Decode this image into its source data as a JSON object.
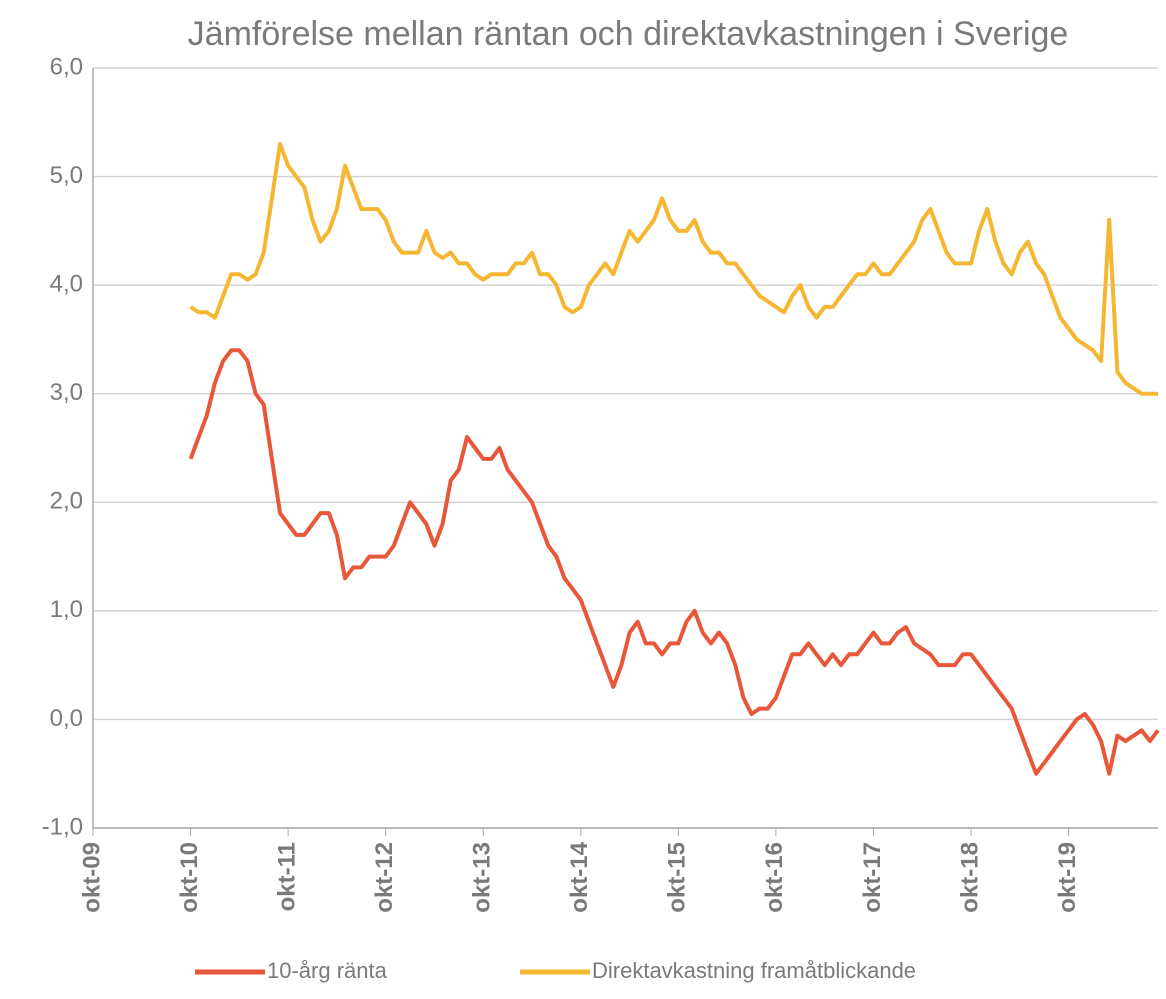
{
  "chart_data": {
    "type": "line",
    "title": "Jämförelse mellan räntan och direktavkastningen i Sverige",
    "categories": [
      "okt-09",
      null,
      null,
      null,
      null,
      null,
      null,
      null,
      null,
      null,
      null,
      null,
      "okt-10",
      null,
      null,
      null,
      null,
      null,
      null,
      null,
      null,
      null,
      null,
      null,
      "okt-11",
      null,
      null,
      null,
      null,
      null,
      null,
      null,
      null,
      null,
      null,
      null,
      "okt-12",
      null,
      null,
      null,
      null,
      null,
      null,
      null,
      null,
      null,
      null,
      null,
      "okt-13",
      null,
      null,
      null,
      null,
      null,
      null,
      null,
      null,
      null,
      null,
      null,
      "okt-14",
      null,
      null,
      null,
      null,
      null,
      null,
      null,
      null,
      null,
      null,
      null,
      "okt-15",
      null,
      null,
      null,
      null,
      null,
      null,
      null,
      null,
      null,
      null,
      null,
      "okt-16",
      null,
      null,
      null,
      null,
      null,
      null,
      null,
      null,
      null,
      null,
      null,
      "okt-17",
      null,
      null,
      null,
      null,
      null,
      null,
      null,
      null,
      null,
      null,
      null,
      "okt-18",
      null,
      null,
      null,
      null,
      null,
      null,
      null,
      null,
      null,
      null,
      null,
      "okt-19",
      null,
      null,
      null,
      null,
      null,
      null,
      null,
      null,
      null,
      null,
      null
    ],
    "series": [
      {
        "name": "10-årg ränta",
        "color": "#e8573a",
        "values": [
          null,
          null,
          null,
          null,
          null,
          null,
          null,
          null,
          null,
          null,
          null,
          null,
          2.4,
          2.6,
          2.8,
          3.1,
          3.3,
          3.4,
          3.4,
          3.3,
          3.0,
          2.9,
          2.4,
          1.9,
          1.8,
          1.7,
          1.7,
          1.8,
          1.9,
          1.9,
          1.7,
          1.3,
          1.4,
          1.4,
          1.5,
          1.5,
          1.5,
          1.6,
          1.8,
          2.0,
          1.9,
          1.8,
          1.6,
          1.8,
          2.2,
          2.3,
          2.6,
          2.5,
          2.4,
          2.4,
          2.5,
          2.3,
          2.2,
          2.1,
          2.0,
          1.8,
          1.6,
          1.5,
          1.3,
          1.2,
          1.1,
          0.9,
          0.7,
          0.5,
          0.3,
          0.5,
          0.8,
          0.9,
          0.7,
          0.7,
          0.6,
          0.7,
          0.7,
          0.9,
          1.0,
          0.8,
          0.7,
          0.8,
          0.7,
          0.5,
          0.2,
          0.05,
          0.1,
          0.1,
          0.2,
          0.4,
          0.6,
          0.6,
          0.7,
          0.6,
          0.5,
          0.6,
          0.5,
          0.6,
          0.6,
          0.7,
          0.8,
          0.7,
          0.7,
          0.8,
          0.85,
          0.7,
          0.65,
          0.6,
          0.5,
          0.5,
          0.5,
          0.6,
          0.6,
          0.5,
          0.4,
          0.3,
          0.2,
          0.1,
          -0.1,
          -0.3,
          -0.5,
          -0.4,
          -0.3,
          -0.2,
          -0.1,
          0.0,
          0.05,
          -0.05,
          -0.2,
          -0.5,
          -0.15,
          -0.2,
          -0.15,
          -0.1,
          -0.2,
          -0.1
        ]
      },
      {
        "name": "Direktavkastning framåtblickande",
        "color": "#f5b731",
        "values": [
          null,
          null,
          null,
          null,
          null,
          null,
          null,
          null,
          null,
          null,
          null,
          null,
          3.8,
          3.75,
          3.75,
          3.7,
          3.9,
          4.1,
          4.1,
          4.05,
          4.1,
          4.3,
          4.8,
          5.3,
          5.1,
          5.0,
          4.9,
          4.6,
          4.4,
          4.5,
          4.7,
          5.1,
          4.9,
          4.7,
          4.7,
          4.7,
          4.6,
          4.4,
          4.3,
          4.3,
          4.3,
          4.5,
          4.3,
          4.25,
          4.3,
          4.2,
          4.2,
          4.1,
          4.05,
          4.1,
          4.1,
          4.1,
          4.2,
          4.2,
          4.3,
          4.1,
          4.1,
          4.0,
          3.8,
          3.75,
          3.8,
          4.0,
          4.1,
          4.2,
          4.1,
          4.3,
          4.5,
          4.4,
          4.5,
          4.6,
          4.8,
          4.6,
          4.5,
          4.5,
          4.6,
          4.4,
          4.3,
          4.3,
          4.2,
          4.2,
          4.1,
          4.0,
          3.9,
          3.85,
          3.8,
          3.75,
          3.9,
          4.0,
          3.8,
          3.7,
          3.8,
          3.8,
          3.9,
          4.0,
          4.1,
          4.1,
          4.2,
          4.1,
          4.1,
          4.2,
          4.3,
          4.4,
          4.6,
          4.7,
          4.5,
          4.3,
          4.2,
          4.2,
          4.2,
          4.5,
          4.7,
          4.4,
          4.2,
          4.1,
          4.3,
          4.4,
          4.2,
          4.1,
          3.9,
          3.7,
          3.6,
          3.5,
          3.45,
          3.4,
          3.3,
          4.6,
          3.2,
          3.1,
          3.05,
          3.0,
          3.0,
          3.0
        ]
      }
    ],
    "ylim": [
      -1,
      6
    ],
    "yticks": [
      {
        "value": -1,
        "label": "-1,0"
      },
      {
        "value": 0,
        "label": "0,0"
      },
      {
        "value": 1,
        "label": "1,0"
      },
      {
        "value": 2,
        "label": "2,0"
      },
      {
        "value": 3,
        "label": "3,0"
      },
      {
        "value": 4,
        "label": "4,0"
      },
      {
        "value": 5,
        "label": "5,0"
      },
      {
        "value": 6,
        "label": "6,0"
      }
    ],
    "grid": true,
    "legend": "bottom"
  }
}
